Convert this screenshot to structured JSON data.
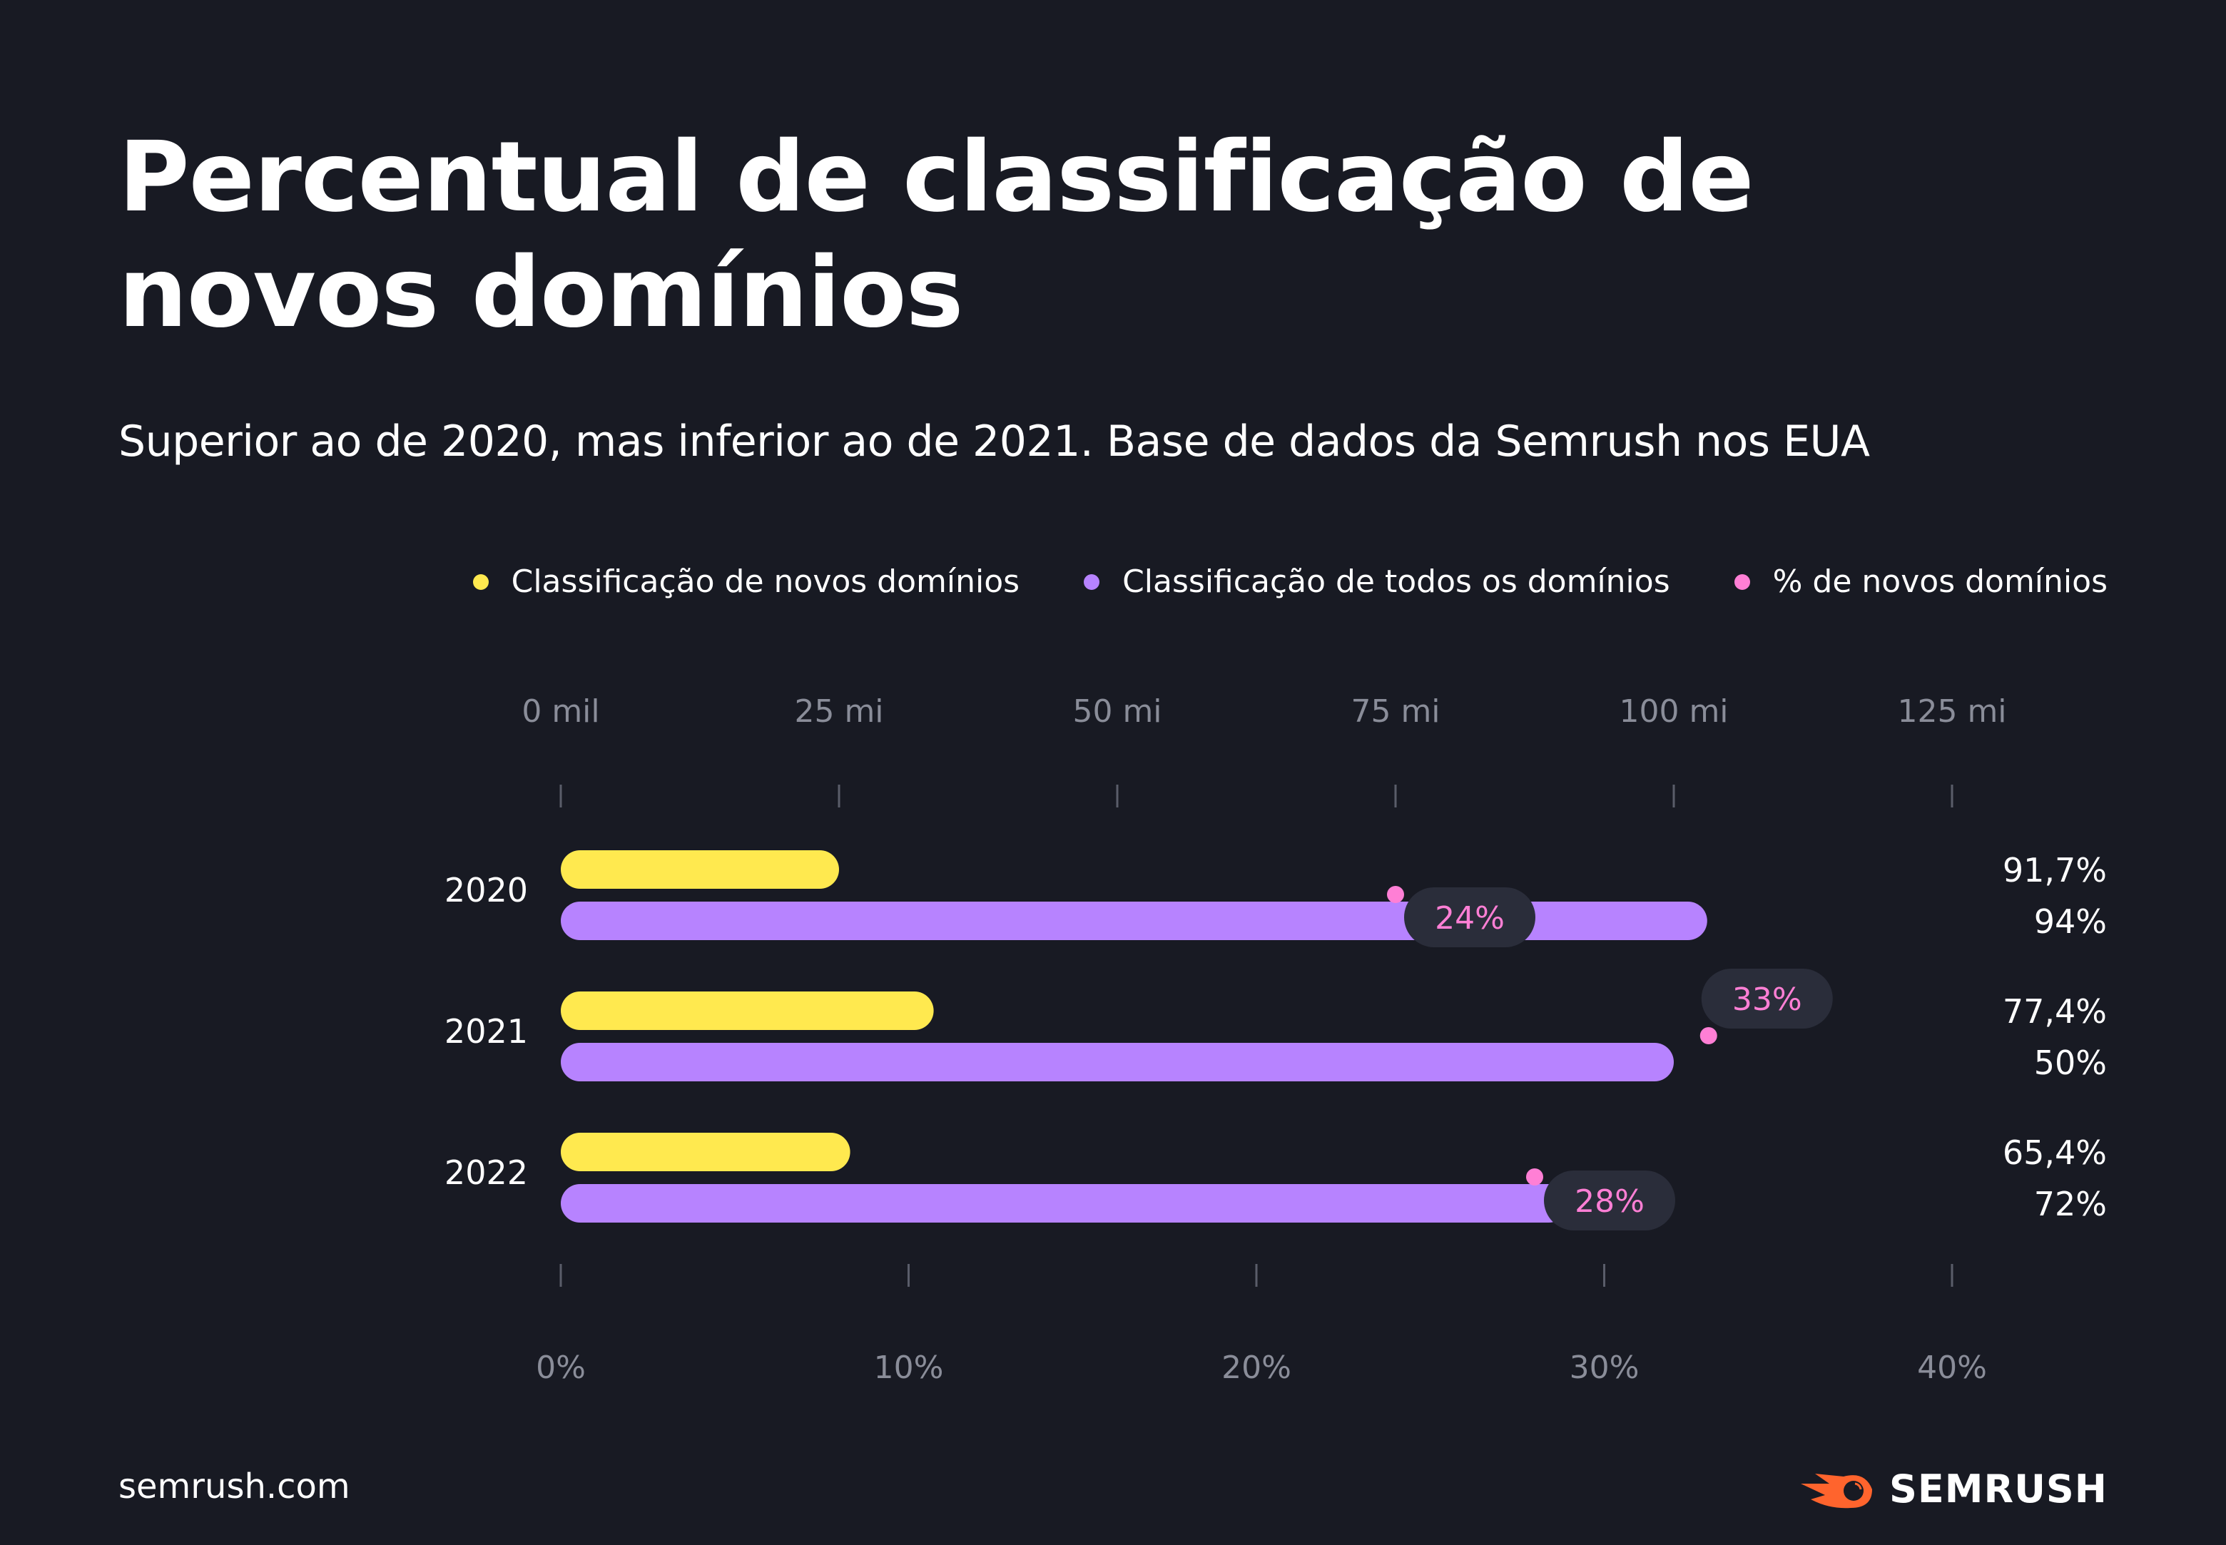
{
  "title": "Percentual de classificação de novos domínios",
  "subtitle": "Superior ao de 2020, mas inferior ao de 2021. Base de dados da Semrush nos EUA",
  "footer": {
    "url": "semrush.com",
    "logo": "SEMRUSH"
  },
  "colors": {
    "background": "#181a23",
    "new_domains": "#ffe94f",
    "all_domains": "#b783ff",
    "percent_new": "#ff7fd5",
    "pill": "#2a2d3a",
    "axis_text": "#8a8d99",
    "logo_orange": "#ff642d"
  },
  "chart_data": {
    "type": "bar",
    "orientation": "horizontal",
    "categories": [
      "2020",
      "2021",
      "2022"
    ],
    "legend": [
      {
        "label": "Classificação de novos domínios",
        "color": "#ffe94f"
      },
      {
        "label": "Classificação de todos os domínios",
        "color": "#b783ff"
      },
      {
        "label": "% de novos domínios",
        "color": "#ff7fd5"
      }
    ],
    "legend_position": "top-right",
    "top_axis": {
      "range": [
        0,
        125
      ],
      "unit": "mi",
      "ticks": [
        0,
        25,
        50,
        75,
        100,
        125
      ],
      "tick_labels": [
        "0 mil",
        "25 mi",
        "50 mi",
        "75 mi",
        "100 mi",
        "125 mi"
      ]
    },
    "bottom_axis": {
      "range": [
        0,
        40
      ],
      "unit": "%",
      "ticks": [
        0,
        10,
        20,
        30,
        40
      ],
      "tick_labels": [
        "0%",
        "10%",
        "20%",
        "30%",
        "40%"
      ]
    },
    "series": [
      {
        "name": "Classificação de novos domínios",
        "axis": "top",
        "values": [
          25,
          33.5,
          26
        ]
      },
      {
        "name": "Classificação de todos os domínios",
        "axis": "top",
        "values": [
          103,
          100,
          90.5
        ]
      },
      {
        "name": "% de novos domínios",
        "axis": "bottom",
        "values": [
          24,
          33,
          28
        ],
        "labels": [
          "24%",
          "33%",
          "28%"
        ]
      }
    ],
    "right_labels": [
      [
        "91,7%",
        "94%"
      ],
      [
        "77,4%",
        "50%"
      ],
      [
        "65,4%",
        "72%"
      ]
    ],
    "grid": false
  }
}
